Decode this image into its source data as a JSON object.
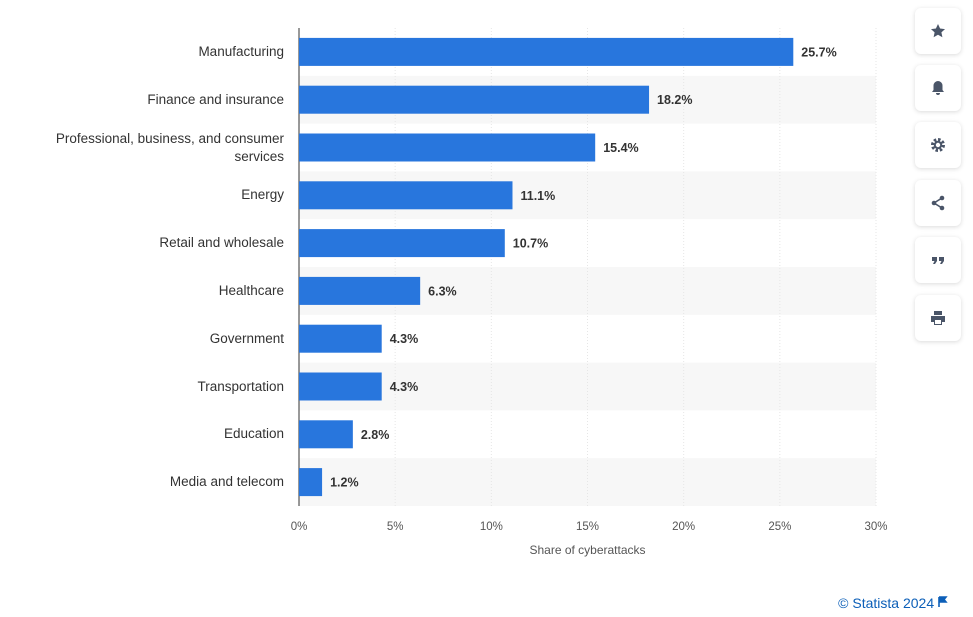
{
  "chart_data": {
    "type": "bar",
    "orientation": "horizontal",
    "categories": [
      "Manufacturing",
      "Finance and insurance",
      "Professional, business, and consumer services",
      "Energy",
      "Retail and wholesale",
      "Healthcare",
      "Government",
      "Transportation",
      "Education",
      "Media and telecom"
    ],
    "values": [
      25.7,
      18.2,
      15.4,
      11.1,
      10.7,
      6.3,
      4.3,
      4.3,
      2.8,
      1.2
    ],
    "value_labels": [
      "25.7%",
      "18.2%",
      "15.4%",
      "11.1%",
      "10.7%",
      "6.3%",
      "4.3%",
      "4.3%",
      "2.8%",
      "1.2%"
    ],
    "color": "#2876dd",
    "xlim": [
      0,
      30
    ],
    "xticks": [
      {
        "value": 0,
        "label": "0%"
      },
      {
        "value": 5,
        "label": "5%"
      },
      {
        "value": 10,
        "label": "10%"
      },
      {
        "value": 15,
        "label": "15%"
      },
      {
        "value": 20,
        "label": "20%"
      },
      {
        "value": 25,
        "label": "25%"
      },
      {
        "value": 30,
        "label": "30%"
      }
    ],
    "x_label": "Share of cyberattacks",
    "grid": true,
    "credit": "© Statista 2024"
  }
}
